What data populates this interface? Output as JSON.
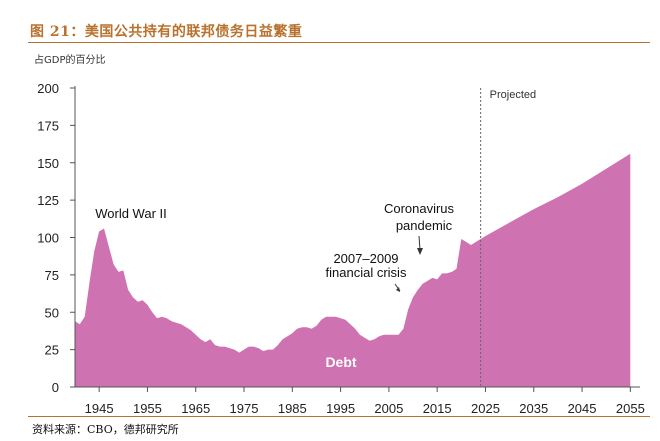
{
  "header": {
    "figure_title": "图 21：美国公共持有的联邦债务日益繁重",
    "unit_label": "占GDP的百分比",
    "source": "资料来源：CBO，德邦研究所"
  },
  "colors": {
    "area": "#cf72b1",
    "title": "#b8722e",
    "axis": "#555555",
    "divider": "#666666"
  },
  "chart_data": {
    "type": "area",
    "xlim": [
      1940,
      2057
    ],
    "ylim": [
      0,
      200
    ],
    "x_ticks": [
      1945,
      1955,
      1965,
      1975,
      1985,
      1995,
      2005,
      2015,
      2025,
      2035,
      2045,
      2055
    ],
    "x_tick_labels": [
      "1945",
      "1955",
      "1965",
      "1975",
      "1985",
      "1995",
      "2005",
      "2015",
      "2025",
      "2035",
      "2045",
      "2055"
    ],
    "y_ticks": [
      0,
      25,
      50,
      75,
      100,
      125,
      150,
      175,
      200
    ],
    "y_tick_labels": [
      "0",
      "25",
      "50",
      "75",
      "100",
      "125",
      "150",
      "175",
      "200"
    ],
    "projection_start": 2024,
    "projected_label": "Projected",
    "series": [
      {
        "name": "Debt",
        "x": [
          1940,
          1941,
          1942,
          1943,
          1944,
          1945,
          1946,
          1947,
          1948,
          1949,
          1950,
          1951,
          1952,
          1953,
          1954,
          1955,
          1956,
          1957,
          1958,
          1959,
          1960,
          1961,
          1962,
          1963,
          1964,
          1965,
          1966,
          1967,
          1968,
          1969,
          1970,
          1971,
          1972,
          1973,
          1974,
          1975,
          1976,
          1977,
          1978,
          1979,
          1980,
          1981,
          1982,
          1983,
          1984,
          1985,
          1986,
          1987,
          1988,
          1989,
          1990,
          1991,
          1992,
          1993,
          1994,
          1995,
          1996,
          1997,
          1998,
          1999,
          2000,
          2001,
          2002,
          2003,
          2004,
          2005,
          2006,
          2007,
          2008,
          2009,
          2010,
          2011,
          2012,
          2013,
          2014,
          2015,
          2016,
          2017,
          2018,
          2019,
          2020,
          2021,
          2022,
          2023,
          2024,
          2025,
          2030,
          2035,
          2040,
          2045,
          2050,
          2055
        ],
        "y": [
          44,
          42,
          47,
          70,
          91,
          104,
          106,
          94,
          82,
          77,
          78,
          65,
          60,
          57,
          58,
          55,
          50,
          46,
          47,
          46,
          44,
          43,
          42,
          40,
          38,
          35,
          32,
          30,
          32,
          28,
          27,
          27,
          26,
          25,
          23,
          25,
          27,
          27,
          26,
          24,
          25,
          25,
          28,
          32,
          34,
          36,
          39,
          40,
          40,
          39,
          41,
          45,
          47,
          47,
          47,
          46,
          45,
          42,
          39,
          35,
          33,
          31,
          32,
          34,
          35,
          35,
          35,
          35,
          39,
          52,
          60,
          65,
          69,
          71,
          73,
          72,
          76,
          76,
          77,
          79,
          99,
          97,
          95,
          97,
          99,
          101,
          110,
          119,
          127,
          136,
          146,
          156
        ]
      }
    ],
    "annotations": [
      "World War II",
      "2007–2009\nfinancial crisis",
      "Coronavirus\npandemic",
      "Debt"
    ]
  }
}
